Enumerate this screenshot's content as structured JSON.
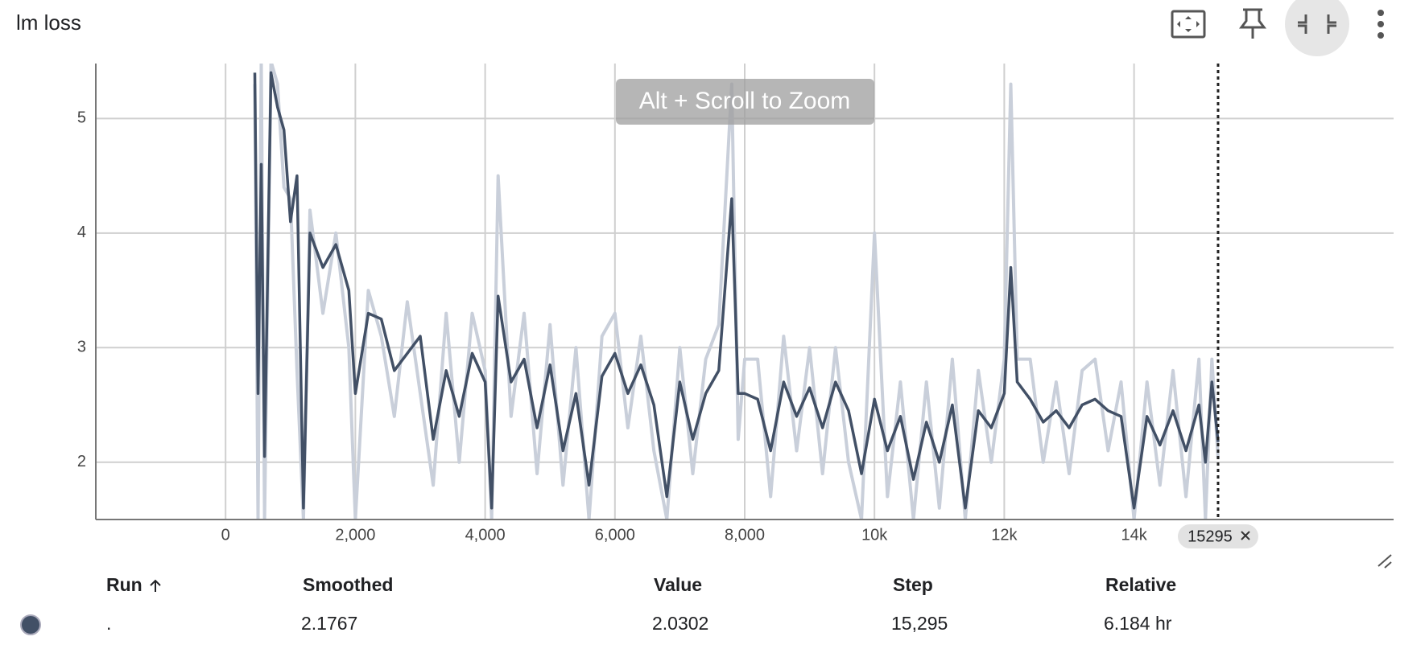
{
  "header": {
    "title": "lm loss"
  },
  "zoom_hint": "Alt + Scroll to Zoom",
  "chart_data": {
    "type": "line",
    "x": [
      450,
      500,
      550,
      600,
      700,
      800,
      900,
      1000,
      1100,
      1200,
      1300,
      1500,
      1700,
      1900,
      2000,
      2200,
      2400,
      2600,
      2800,
      3000,
      3200,
      3400,
      3600,
      3800,
      4000,
      4100,
      4200,
      4400,
      4600,
      4800,
      5000,
      5200,
      5400,
      5600,
      5800,
      6000,
      6200,
      6400,
      6600,
      6800,
      7000,
      7200,
      7400,
      7600,
      7800,
      7900,
      8000,
      8200,
      8400,
      8600,
      8800,
      9000,
      9200,
      9400,
      9600,
      9800,
      10000,
      10200,
      10400,
      10600,
      10800,
      11000,
      11200,
      11400,
      11600,
      11800,
      12000,
      12100,
      12200,
      12400,
      12600,
      12800,
      13000,
      13200,
      13400,
      13600,
      13800,
      14000,
      14200,
      14400,
      14600,
      14800,
      15000,
      15100,
      15200,
      15295
    ],
    "series": [
      {
        "color": "#c9cfda",
        "values": [
          5.3,
          1.5,
          5.5,
          1.5,
          5.5,
          5.3,
          4.4,
          4.3,
          2.8,
          1.5,
          4.2,
          3.3,
          4.0,
          3.0,
          1.5,
          3.5,
          3.1,
          2.4,
          3.4,
          2.6,
          1.8,
          3.3,
          2.0,
          3.3,
          2.8,
          1.5,
          4.5,
          2.4,
          3.3,
          1.9,
          3.2,
          1.8,
          3.0,
          1.5,
          3.1,
          3.3,
          2.3,
          3.1,
          2.1,
          1.5,
          3.0,
          1.9,
          2.9,
          3.2,
          5.3,
          2.2,
          2.9,
          2.9,
          1.7,
          3.1,
          2.1,
          3.0,
          1.9,
          3.0,
          2.0,
          1.5,
          4.0,
          1.7,
          2.7,
          1.5,
          2.7,
          1.6,
          2.9,
          1.5,
          2.8,
          2.0,
          2.9,
          5.3,
          2.9,
          2.9,
          2.0,
          2.7,
          1.9,
          2.8,
          2.9,
          2.1,
          2.7,
          1.5,
          2.7,
          1.8,
          2.8,
          1.7,
          2.9,
          1.5,
          2.9,
          2.0302
        ]
      },
      {
        "color": "#425066",
        "values": [
          5.4,
          2.6,
          4.6,
          2.05,
          5.4,
          5.1,
          4.9,
          4.1,
          4.5,
          1.6,
          4.0,
          3.7,
          3.9,
          3.5,
          2.6,
          3.3,
          3.25,
          2.8,
          2.95,
          3.1,
          2.2,
          2.8,
          2.4,
          2.95,
          2.7,
          1.6,
          3.45,
          2.7,
          2.9,
          2.3,
          2.85,
          2.1,
          2.6,
          1.8,
          2.75,
          2.95,
          2.6,
          2.85,
          2.5,
          1.7,
          2.7,
          2.2,
          2.6,
          2.8,
          4.3,
          2.6,
          2.6,
          2.55,
          2.1,
          2.7,
          2.4,
          2.65,
          2.3,
          2.7,
          2.45,
          1.9,
          2.55,
          2.1,
          2.4,
          1.85,
          2.35,
          2.0,
          2.5,
          1.6,
          2.45,
          2.3,
          2.6,
          3.7,
          2.7,
          2.55,
          2.35,
          2.45,
          2.3,
          2.5,
          2.55,
          2.45,
          2.4,
          1.6,
          2.4,
          2.15,
          2.45,
          2.1,
          2.5,
          2.0,
          2.7,
          2.1767
        ]
      }
    ],
    "xlim": [
      -2000,
      18000
    ],
    "xticks": [
      0,
      {
        "value": 2000,
        "label": "2,000"
      },
      {
        "value": 4000,
        "label": "4,000"
      },
      {
        "value": 6000,
        "label": "6,000"
      },
      {
        "value": 8000,
        "label": "8,000"
      },
      {
        "value": 10000,
        "label": "10k"
      },
      {
        "value": 12000,
        "label": "12k"
      },
      {
        "value": 14000,
        "label": "14k"
      }
    ],
    "ylim": [
      1.5,
      5.48
    ],
    "yticks": [
      2,
      3,
      4,
      5
    ],
    "grid": true,
    "cursor_step": 15295
  },
  "table": {
    "headers": [
      "Run",
      "Smoothed",
      "Value",
      "Step",
      "Relative"
    ],
    "rows": [
      [
        ".",
        2.1767,
        2.0302,
        "15,295",
        "6.184 hr"
      ]
    ]
  }
}
